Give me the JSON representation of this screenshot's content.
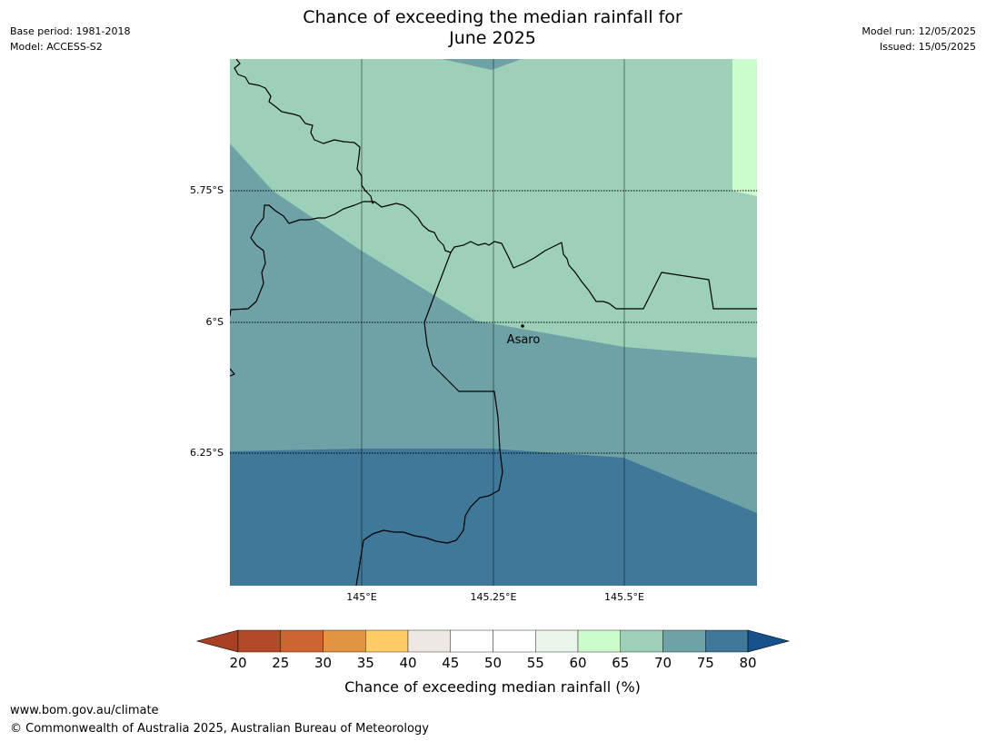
{
  "header": {
    "title_line1": "Chance of exceeding the median rainfall for",
    "title_line2": "June 2025",
    "base_period": "Base period: 1981-2018",
    "model": "Model: ACCESS-S2",
    "model_run": "Model run: 12/05/2025",
    "issued": "Issued: 15/05/2025"
  },
  "map": {
    "place_label": "Asaro",
    "lat_labels": [
      "5.75°S",
      "6°S",
      "6.25°S"
    ],
    "lon_labels": [
      "145°E",
      "145.25°E",
      "145.5°E"
    ],
    "zone_colors": {
      "65-70": "#9dd0b9",
      "70-75": "#6ea2a7",
      "75-80": "#3f7898",
      "60-65": "#ccfbcc"
    }
  },
  "legend": {
    "title": "Chance of exceeding median rainfall (%)",
    "ticks": [
      "20",
      "25",
      "30",
      "35",
      "40",
      "45",
      "50",
      "55",
      "60",
      "65",
      "70",
      "75",
      "80"
    ],
    "colors": [
      "#a94024",
      "#b24a27",
      "#cd6432",
      "#e29444",
      "#fecb65",
      "#ede8e3",
      "#ffffff",
      "#ffffff",
      "#ebf6ea",
      "#ccfbcc",
      "#9dd0b9",
      "#6ea2a7",
      "#3f7898",
      "#16518b"
    ]
  },
  "footer": {
    "url": "www.bom.gov.au/climate",
    "copyright": "© Commonwealth of Australia 2025, Australian Bureau of Meteorology"
  }
}
